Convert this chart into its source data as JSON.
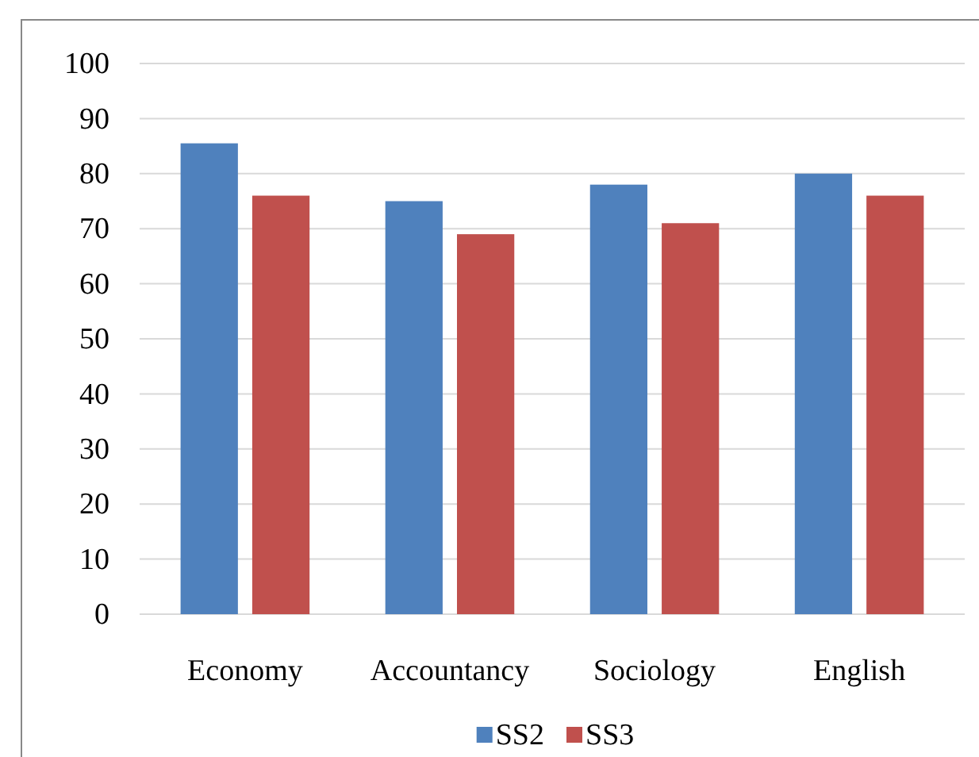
{
  "chart_data": {
    "type": "bar",
    "categories": [
      "Economy",
      "Accountancy",
      "Sociology",
      "English"
    ],
    "series": [
      {
        "name": "SS2",
        "color": "#4f81bd",
        "values": [
          85.5,
          75,
          78,
          80
        ]
      },
      {
        "name": "SS3",
        "color": "#c0504d",
        "values": [
          76,
          69,
          71,
          76
        ]
      }
    ],
    "ylim": [
      0,
      100
    ],
    "yticks": [
      0,
      10,
      20,
      30,
      40,
      50,
      60,
      70,
      80,
      90,
      100
    ],
    "grid": "y",
    "legend": "bottom"
  }
}
